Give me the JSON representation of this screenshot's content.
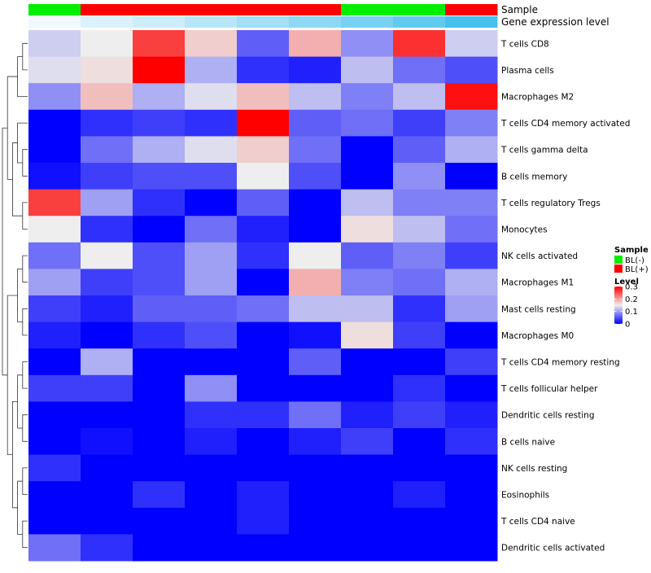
{
  "chart_data": {
    "type": "heatmap",
    "row_labels": [
      "T cells CD8",
      "Plasma cells",
      "Macrophages M2",
      "T cells CD4 memory activated",
      "T cells gamma delta",
      "B cells memory",
      "T cells regulatory  Tregs",
      "Monocytes",
      "NK cells activated",
      "Macrophages M1",
      "Mast cells resting",
      "Macrophages M0",
      "T cells CD4 memory resting",
      "T cells follicular helper",
      "Dendritic cells resting",
      "B cells naive",
      "NK cells resting",
      "Eosinophils",
      "T cells CD4 naive",
      "Dendritic cells activated"
    ],
    "annotation_tracks": [
      {
        "label": "Sample",
        "values": [
          "BL(-)",
          "BL(+)",
          "BL(+)",
          "BL(+)",
          "BL(+)",
          "BL(+)",
          "BL(-)",
          "BL(-)",
          "BL(+)"
        ]
      },
      {
        "label": "Gene expression level",
        "values": [
          0.02,
          0.05,
          0.07,
          0.1,
          0.13,
          0.16,
          0.19,
          0.22,
          0.26
        ]
      }
    ],
    "values": [
      [
        0.13,
        0.15,
        0.26,
        0.17,
        0.06,
        0.19,
        0.09,
        0.27,
        0.13
      ],
      [
        0.14,
        0.16,
        0.3,
        0.11,
        0.03,
        0.02,
        0.12,
        0.07,
        0.05
      ],
      [
        0.09,
        0.18,
        0.11,
        0.14,
        0.18,
        0.12,
        0.08,
        0.12,
        0.29
      ],
      [
        0.0,
        0.03,
        0.04,
        0.03,
        0.3,
        0.06,
        0.07,
        0.04,
        0.08
      ],
      [
        0.0,
        0.07,
        0.11,
        0.14,
        0.17,
        0.07,
        0.0,
        0.06,
        0.11
      ],
      [
        0.01,
        0.04,
        0.05,
        0.05,
        0.15,
        0.05,
        0.0,
        0.09,
        0.0
      ],
      [
        0.26,
        0.1,
        0.03,
        0.0,
        0.06,
        0.0,
        0.12,
        0.08,
        0.08
      ],
      [
        0.15,
        0.03,
        0.0,
        0.07,
        0.02,
        0.0,
        0.16,
        0.12,
        0.07
      ],
      [
        0.07,
        0.15,
        0.05,
        0.1,
        0.03,
        0.15,
        0.06,
        0.08,
        0.04
      ],
      [
        0.1,
        0.04,
        0.05,
        0.1,
        0.0,
        0.19,
        0.08,
        0.07,
        0.11
      ],
      [
        0.04,
        0.02,
        0.06,
        0.06,
        0.07,
        0.12,
        0.12,
        0.03,
        0.1
      ],
      [
        0.02,
        0.0,
        0.03,
        0.05,
        0.0,
        0.01,
        0.16,
        0.04,
        0.0
      ],
      [
        0.0,
        0.11,
        0.0,
        0.0,
        0.0,
        0.06,
        0.0,
        0.0,
        0.04
      ],
      [
        0.04,
        0.04,
        0.0,
        0.09,
        0.0,
        0.0,
        0.0,
        0.03,
        0.0
      ],
      [
        0.0,
        0.0,
        0.0,
        0.03,
        0.03,
        0.07,
        0.02,
        0.04,
        0.02
      ],
      [
        0.0,
        0.01,
        0.0,
        0.02,
        0.0,
        0.02,
        0.04,
        0.0,
        0.03
      ],
      [
        0.03,
        0.0,
        0.0,
        0.0,
        0.0,
        0.0,
        0.0,
        0.0,
        0.0
      ],
      [
        0.0,
        0.0,
        0.03,
        0.0,
        0.02,
        0.0,
        0.0,
        0.02,
        0.0
      ],
      [
        0.0,
        0.0,
        0.0,
        0.0,
        0.02,
        0.0,
        0.0,
        0.0,
        0.0
      ],
      [
        0.07,
        0.03,
        0.0,
        0.0,
        0.0,
        0.0,
        0.0,
        0.0,
        0.0
      ]
    ],
    "color_scale": {
      "low": "#0000ff",
      "mid": "#eeeeee",
      "high": "#ff0000",
      "min": 0,
      "mid_value": 0.15,
      "max": 0.3
    },
    "legend": {
      "placement": "right",
      "sample_title": "Sample",
      "sample_items": [
        {
          "label": "BL(-)",
          "color": "#00ee00"
        },
        {
          "label": "BL(+)",
          "color": "#ff0000"
        }
      ],
      "level_title": "Level",
      "level_ticks": [
        "0.3",
        "0.2",
        "0.1",
        "0"
      ],
      "level_tick_values": [
        0.3,
        0.2,
        0.1,
        0
      ]
    },
    "expression_track_colors": {
      "low": "#f0f9ff",
      "high": "#47c1ec"
    }
  }
}
